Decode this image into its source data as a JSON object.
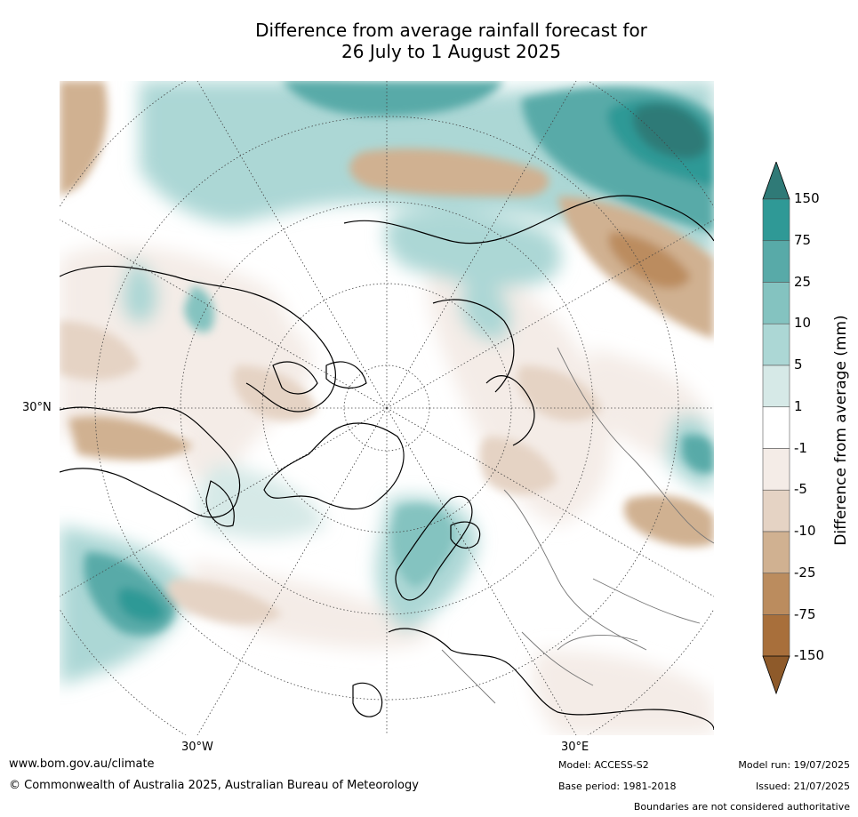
{
  "title_line1": "Difference from average rainfall forecast for",
  "title_line2": "26 July to 1 August 2025",
  "map": {
    "projection": "north-polar-stereographic",
    "lat_label": "30°N",
    "lon_labels": [
      "30°W",
      "30°E"
    ]
  },
  "colorbar": {
    "label": "Difference from average (mm)",
    "ticks": [
      "150",
      "75",
      "25",
      "10",
      "5",
      "1",
      "-1",
      "-5",
      "-10",
      "-25",
      "-75",
      "-150"
    ],
    "colors": [
      "#2f8a86",
      "#2f9996",
      "#58aaa8",
      "#84c3c0",
      "#acd7d5",
      "#d6e9e7",
      "#ffffff",
      "#f4ece7",
      "#e5d3c4",
      "#d0b191",
      "#bb8c5e",
      "#a86f3b",
      "#8e5a2a"
    ],
    "extend": "both"
  },
  "footer": {
    "website": "www.bom.gov.au/climate",
    "copyright": "© Commonwealth of Australia 2025, Australian Bureau of Meteorology",
    "model": "Model: ACCESS-S2",
    "base_period": "Base period: 1981-2018",
    "model_run": "Model run: 19/07/2025",
    "issued": "Issued: 21/07/2025",
    "disclaimer": "Boundaries are not considered authoritative"
  }
}
